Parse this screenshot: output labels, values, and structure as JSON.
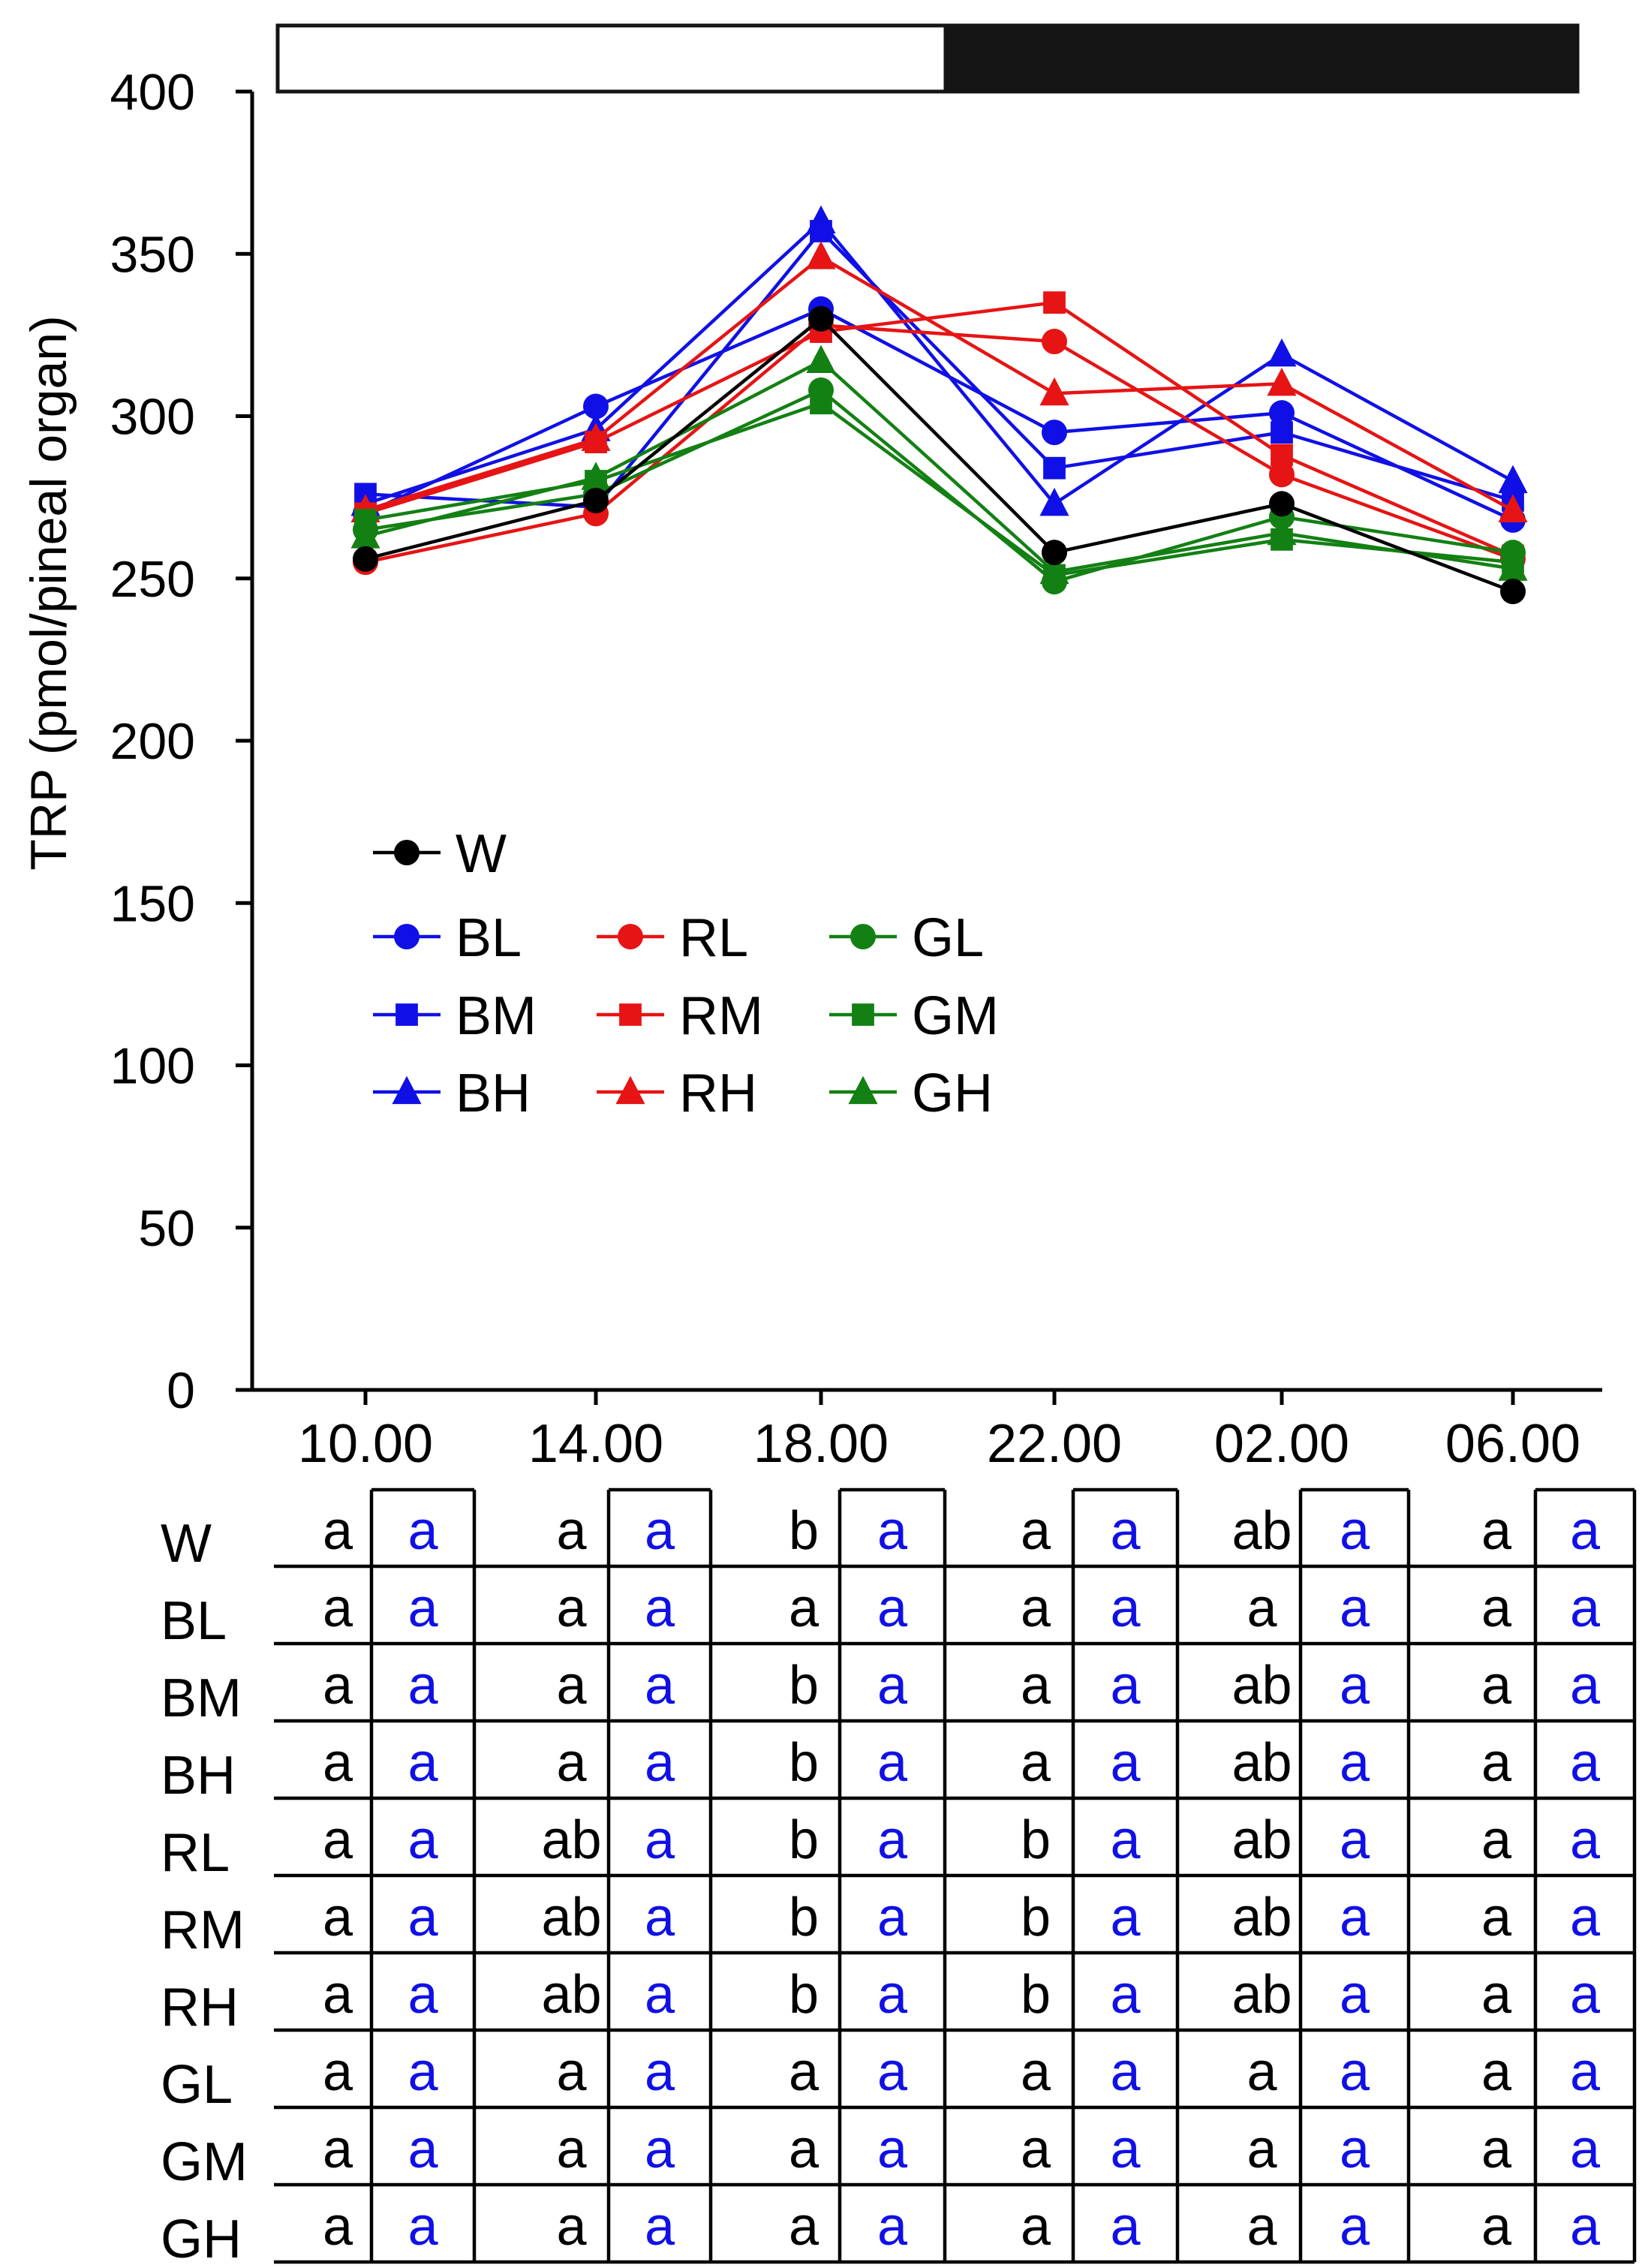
{
  "chart_data": {
    "type": "line",
    "title": "",
    "xlabel": "",
    "ylabel": "TRP (pmol/pineal organ)",
    "ylim": [
      0,
      400
    ],
    "yticks": [
      0,
      50,
      100,
      150,
      200,
      250,
      300,
      350,
      400
    ],
    "categories": [
      "10.00",
      "14.00",
      "18.00",
      "22.00",
      "02.00",
      "06.00"
    ],
    "photoperiod_bar": {
      "light_until": "20.00",
      "colors": {
        "light": "#ffffff",
        "dark": "#141414"
      }
    },
    "grid": false,
    "legend_position": "middle-left",
    "series": [
      {
        "name": "W",
        "color": "#000000",
        "marker": "circle",
        "values": [
          256,
          274,
          330,
          258,
          273,
          246
        ]
      },
      {
        "name": "BL",
        "color": "#1010e6",
        "marker": "circle",
        "values": [
          270,
          303,
          333,
          295,
          301,
          268
        ]
      },
      {
        "name": "BM",
        "color": "#1010e6",
        "marker": "square",
        "values": [
          276,
          272,
          357,
          284,
          295,
          274
        ]
      },
      {
        "name": "BH",
        "color": "#1010e6",
        "marker": "triangle",
        "values": [
          273,
          296,
          360,
          273,
          319,
          280
        ]
      },
      {
        "name": "RL",
        "color": "#e61414",
        "marker": "circle",
        "values": [
          255,
          270,
          328,
          323,
          282,
          256
        ]
      },
      {
        "name": "RM",
        "color": "#e61414",
        "marker": "square",
        "values": [
          270,
          292,
          326,
          335,
          288,
          257
        ]
      },
      {
        "name": "RH",
        "color": "#e61414",
        "marker": "triangle",
        "values": [
          271,
          293,
          349,
          307,
          310,
          271
        ]
      },
      {
        "name": "GL",
        "color": "#138013",
        "marker": "circle",
        "values": [
          265,
          276,
          308,
          249,
          269,
          258
        ]
      },
      {
        "name": "GM",
        "color": "#138013",
        "marker": "square",
        "values": [
          268,
          280,
          304,
          251,
          262,
          255
        ]
      },
      {
        "name": "GH",
        "color": "#138013",
        "marker": "triangle",
        "values": [
          263,
          281,
          317,
          252,
          264,
          253
        ]
      }
    ],
    "significance_table": {
      "black_color": "#000000",
      "blue_color": "#1010e6",
      "rows": [
        {
          "label": "W",
          "black": [
            "a",
            "a",
            "b",
            "a",
            "ab",
            "a"
          ],
          "blue": [
            "a",
            "a",
            "a",
            "a",
            "a",
            "a"
          ]
        },
        {
          "label": "BL",
          "black": [
            "a",
            "a",
            "a",
            "a",
            "a",
            "a"
          ],
          "blue": [
            "a",
            "a",
            "a",
            "a",
            "a",
            "a"
          ]
        },
        {
          "label": "BM",
          "black": [
            "a",
            "a",
            "b",
            "a",
            "ab",
            "a"
          ],
          "blue": [
            "a",
            "a",
            "a",
            "a",
            "a",
            "a"
          ]
        },
        {
          "label": "BH",
          "black": [
            "a",
            "a",
            "b",
            "a",
            "ab",
            "a"
          ],
          "blue": [
            "a",
            "a",
            "a",
            "a",
            "a",
            "a"
          ]
        },
        {
          "label": "RL",
          "black": [
            "a",
            "ab",
            "b",
            "b",
            "ab",
            "a"
          ],
          "blue": [
            "a",
            "a",
            "a",
            "a",
            "a",
            "a"
          ]
        },
        {
          "label": "RM",
          "black": [
            "a",
            "ab",
            "b",
            "b",
            "ab",
            "a"
          ],
          "blue": [
            "a",
            "a",
            "a",
            "a",
            "a",
            "a"
          ]
        },
        {
          "label": "RH",
          "black": [
            "a",
            "ab",
            "b",
            "b",
            "ab",
            "a"
          ],
          "blue": [
            "a",
            "a",
            "a",
            "a",
            "a",
            "a"
          ]
        },
        {
          "label": "GL",
          "black": [
            "a",
            "a",
            "a",
            "a",
            "a",
            "a"
          ],
          "blue": [
            "a",
            "a",
            "a",
            "a",
            "a",
            "a"
          ]
        },
        {
          "label": "GM",
          "black": [
            "a",
            "a",
            "a",
            "a",
            "a",
            "a"
          ],
          "blue": [
            "a",
            "a",
            "a",
            "a",
            "a",
            "a"
          ]
        },
        {
          "label": "GH",
          "black": [
            "a",
            "a",
            "a",
            "a",
            "a",
            "a"
          ],
          "blue": [
            "a",
            "a",
            "a",
            "a",
            "a",
            "a"
          ]
        }
      ]
    }
  }
}
